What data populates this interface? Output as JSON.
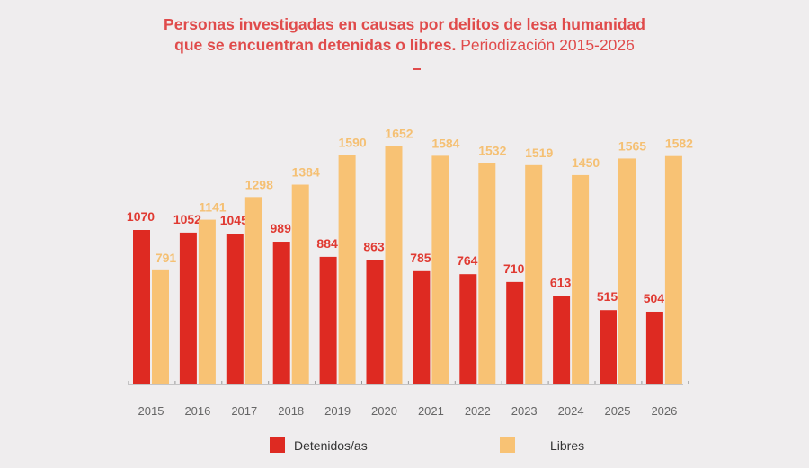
{
  "chart_data": {
    "type": "bar",
    "title": "Personas investigadas en causas por delitos de lesa humanidad que se encuentran detenidas o libres.",
    "title_bold_line1": "Personas investigadas en causas por delitos de lesa humanidad",
    "title_bold_line2": "que se encuentran detenidas o libres.",
    "subtitle": "Periodización 2015-2026",
    "title_dash": "–",
    "categories": [
      "2015",
      "2016",
      "2017",
      "2018",
      "2019",
      "2020",
      "2021",
      "2022",
      "2023",
      "2024",
      "2025",
      "2026"
    ],
    "series": [
      {
        "name": "Detenidos/as",
        "color": "#de2a22",
        "values": [
          1070,
          1052,
          1045,
          989,
          884,
          863,
          785,
          764,
          710,
          613,
          515,
          504
        ]
      },
      {
        "name": "Libres",
        "color": "#f8c274",
        "values": [
          791,
          1141,
          1298,
          1384,
          1590,
          1652,
          1584,
          1532,
          1519,
          1450,
          1565,
          1582
        ]
      }
    ],
    "ylim": [
      0,
      1700
    ],
    "grid": false,
    "legend_position": "bottom",
    "label_colors": {
      "Detenidos/as": "#e03a32",
      "Libres": "#f5c073"
    }
  }
}
